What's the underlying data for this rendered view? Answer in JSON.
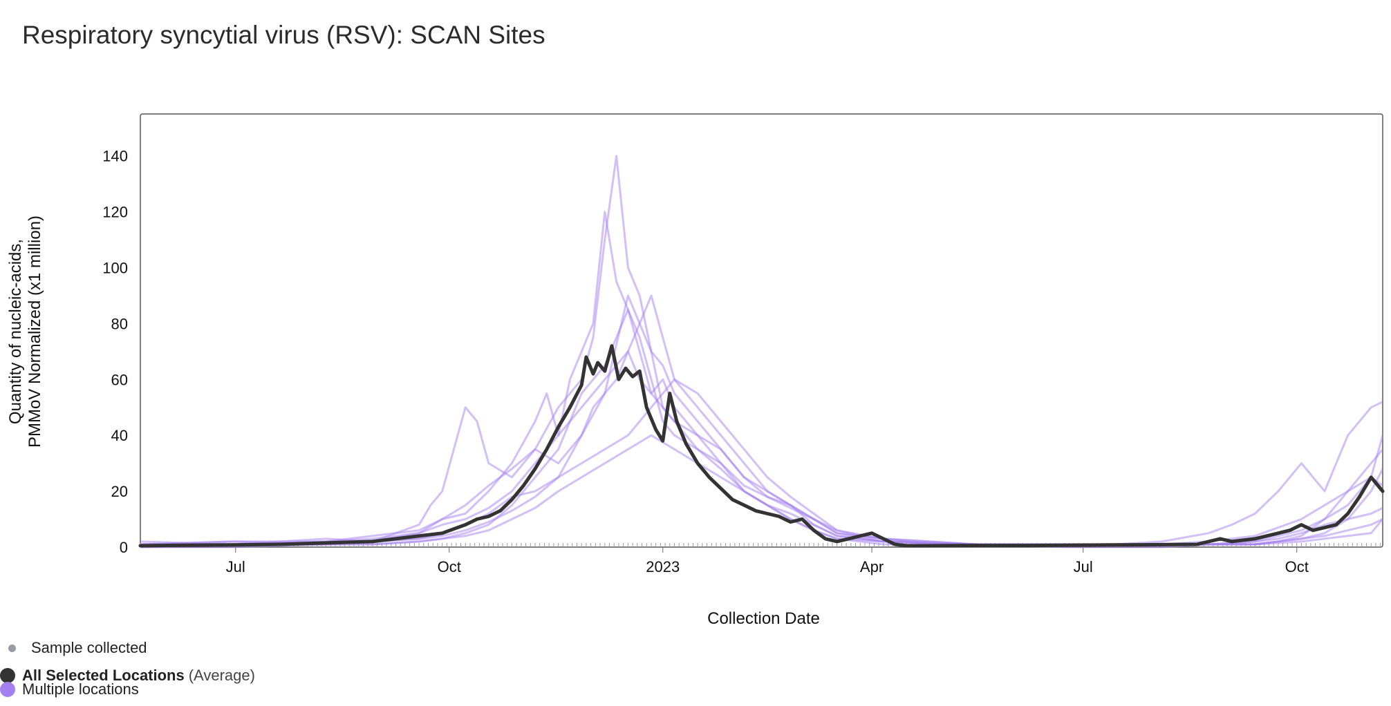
{
  "page": {
    "title": "Respiratory syncytial virus (RSV): SCAN Sites"
  },
  "legend": {
    "sample_label": "Sample collected",
    "average_label": "All Selected Locations",
    "average_suffix": "(Average)",
    "multiple_label": "Multiple locations"
  },
  "colors": {
    "average": "#333333",
    "locations": "#a57ff0",
    "sample_marker": "#9a9aa6",
    "frame": "#555555"
  },
  "chart_data": {
    "type": "line",
    "title": "Respiratory syncytial virus (RSV): SCAN Sites",
    "xlabel": "Collection Date",
    "ylabel": "Quantity of nucleic-acids, PMMoV Normalized (x1 million)",
    "ylabel_lines": [
      "Quantity of nucleic-acids,",
      "PMMoV Normalized (x1 million)"
    ],
    "ylim": [
      0,
      155
    ],
    "yticks": [
      0,
      20,
      40,
      60,
      80,
      100,
      120,
      140
    ],
    "xlim": [
      0,
      535
    ],
    "xticks": [
      {
        "day": 41,
        "label": "Jul"
      },
      {
        "day": 133,
        "label": "Oct"
      },
      {
        "day": 225,
        "label": "2023"
      },
      {
        "day": 315,
        "label": "Apr"
      },
      {
        "day": 406,
        "label": "Jul"
      },
      {
        "day": 498,
        "label": "Oct"
      }
    ],
    "x_units": "days since 2022-05-21",
    "series": [
      {
        "name": "All Selected Locations (Average)",
        "x": [
          0,
          20,
          40,
          60,
          80,
          100,
          110,
          120,
          130,
          135,
          140,
          145,
          150,
          155,
          160,
          165,
          170,
          175,
          180,
          185,
          190,
          192,
          195,
          197,
          200,
          203,
          206,
          209,
          212,
          215,
          218,
          222,
          225,
          228,
          231,
          235,
          240,
          245,
          250,
          255,
          260,
          265,
          270,
          275,
          280,
          285,
          290,
          295,
          300,
          305,
          310,
          315,
          320,
          325,
          330,
          340,
          360,
          380,
          400,
          420,
          440,
          455,
          465,
          470,
          480,
          490,
          495,
          500,
          505,
          510,
          515,
          520,
          525,
          530,
          533,
          535
        ],
        "values": [
          0.5,
          0.7,
          0.8,
          1.0,
          1.5,
          2.0,
          3.0,
          4.0,
          5.0,
          6.5,
          8.0,
          10,
          11,
          13,
          17,
          22,
          28,
          35,
          43,
          50,
          58,
          68,
          62,
          66,
          63,
          72,
          60,
          64,
          61,
          63,
          50,
          42,
          38,
          55,
          45,
          37,
          30,
          25,
          21,
          17,
          15,
          13,
          12,
          11,
          9,
          10,
          6,
          3,
          2,
          3,
          4,
          5,
          3,
          1,
          0.5,
          0.5,
          0.6,
          0.6,
          0.7,
          0.8,
          0.9,
          1.0,
          3.0,
          2.0,
          3.0,
          5.0,
          6.0,
          8.0,
          6.0,
          7.0,
          8.0,
          12.0,
          18.0,
          25.0,
          22.0,
          20.0
        ]
      }
    ],
    "location_series": [
      {
        "name": "Location 1",
        "x": [
          0,
          40,
          80,
          100,
          120,
          130,
          140,
          150,
          160,
          170,
          175,
          180,
          185,
          190,
          195,
          200,
          205,
          210,
          215,
          220,
          225,
          230,
          235,
          240,
          250,
          260,
          270,
          280,
          290,
          300,
          310,
          320,
          340,
          380,
          420,
          440,
          460,
          470,
          480,
          490,
          500,
          510,
          520,
          530,
          535
        ],
        "values": [
          2,
          1,
          3,
          2,
          5,
          10,
          12,
          20,
          30,
          45,
          55,
          40,
          60,
          70,
          80,
          120,
          95,
          85,
          70,
          55,
          60,
          50,
          45,
          40,
          30,
          22,
          18,
          14,
          10,
          6,
          4,
          3,
          1,
          1,
          1,
          2,
          5,
          8,
          12,
          20,
          30,
          20,
          40,
          50,
          52
        ]
      },
      {
        "name": "Location 2",
        "x": [
          0,
          40,
          80,
          100,
          120,
          125,
          130,
          135,
          140,
          145,
          150,
          160,
          170,
          180,
          190,
          195,
          200,
          205,
          210,
          215,
          220,
          225,
          230,
          240,
          250,
          260,
          270,
          280,
          290,
          300,
          320,
          360,
          400,
          440,
          460,
          480,
          500,
          510,
          520,
          530,
          535
        ],
        "values": [
          1,
          2,
          1,
          2,
          8,
          15,
          20,
          35,
          50,
          45,
          30,
          25,
          35,
          50,
          60,
          75,
          110,
          140,
          100,
          90,
          70,
          65,
          55,
          45,
          35,
          25,
          18,
          15,
          10,
          5,
          2,
          1,
          1,
          1,
          2,
          4,
          10,
          15,
          20,
          30,
          35
        ]
      },
      {
        "name": "Location 3",
        "x": [
          0,
          40,
          80,
          100,
          120,
          130,
          140,
          150,
          160,
          170,
          180,
          185,
          190,
          195,
          200,
          205,
          210,
          215,
          220,
          225,
          230,
          240,
          250,
          260,
          270,
          280,
          290,
          300,
          320,
          360,
          400,
          440,
          460,
          480,
          490,
          500,
          510,
          520,
          530,
          535
        ],
        "values": [
          1,
          1,
          2,
          3,
          5,
          8,
          10,
          14,
          20,
          30,
          40,
          45,
          50,
          55,
          60,
          65,
          70,
          60,
          55,
          50,
          45,
          35,
          28,
          20,
          15,
          12,
          8,
          4,
          2,
          1,
          1,
          1,
          1,
          2,
          3,
          5,
          8,
          10,
          12,
          14
        ]
      },
      {
        "name": "Location 4",
        "x": [
          0,
          40,
          80,
          100,
          120,
          130,
          140,
          150,
          160,
          170,
          180,
          190,
          195,
          200,
          205,
          210,
          215,
          220,
          225,
          230,
          235,
          240,
          250,
          260,
          270,
          280,
          290,
          300,
          320,
          360,
          400,
          440,
          460,
          480,
          490,
          500,
          510,
          520,
          530,
          535
        ],
        "values": [
          1,
          2,
          2,
          4,
          6,
          10,
          15,
          22,
          28,
          35,
          30,
          40,
          50,
          55,
          60,
          70,
          80,
          90,
          75,
          60,
          55,
          50,
          40,
          30,
          20,
          15,
          10,
          5,
          3,
          1,
          1,
          1,
          1,
          2,
          4,
          6,
          10,
          15,
          25,
          40
        ]
      },
      {
        "name": "Location 5",
        "x": [
          0,
          40,
          80,
          100,
          120,
          130,
          140,
          150,
          160,
          170,
          180,
          190,
          200,
          210,
          220,
          225,
          230,
          240,
          250,
          260,
          270,
          280,
          290,
          300,
          320,
          360,
          400,
          440,
          460,
          480,
          490,
          500,
          510,
          520,
          530,
          535
        ],
        "values": [
          1,
          1,
          1,
          2,
          3,
          4,
          6,
          9,
          13,
          18,
          25,
          40,
          55,
          90,
          70,
          50,
          45,
          40,
          35,
          25,
          20,
          15,
          8,
          4,
          2,
          1,
          1,
          1,
          1,
          1,
          2,
          3,
          4,
          6,
          8,
          10
        ]
      },
      {
        "name": "Location 6",
        "x": [
          0,
          40,
          80,
          100,
          120,
          130,
          140,
          150,
          160,
          170,
          180,
          190,
          200,
          210,
          215,
          220,
          230,
          240,
          250,
          260,
          270,
          280,
          290,
          300,
          320,
          360,
          400,
          440,
          460,
          480,
          490,
          500,
          510,
          520,
          530,
          535
        ],
        "values": [
          1,
          1,
          1,
          2,
          3,
          5,
          8,
          12,
          18,
          20,
          25,
          30,
          35,
          40,
          45,
          50,
          60,
          55,
          45,
          35,
          25,
          18,
          12,
          6,
          3,
          1,
          1,
          1,
          1,
          1,
          2,
          4,
          10,
          20,
          25,
          22
        ]
      },
      {
        "name": "Location 7",
        "x": [
          0,
          40,
          80,
          100,
          120,
          130,
          140,
          150,
          160,
          170,
          180,
          190,
          200,
          210,
          215,
          220,
          225,
          230,
          240,
          250,
          260,
          270,
          280,
          290,
          300,
          320,
          360,
          400,
          440,
          460,
          480,
          500,
          510,
          520,
          530,
          535
        ],
        "values": [
          0,
          1,
          1,
          1,
          2,
          3,
          5,
          8,
          15,
          25,
          35,
          55,
          65,
          85,
          75,
          60,
          45,
          40,
          35,
          30,
          20,
          15,
          10,
          6,
          3,
          2,
          1,
          1,
          1,
          1,
          1,
          3,
          5,
          10,
          20,
          28
        ]
      },
      {
        "name": "Location 8",
        "x": [
          0,
          40,
          80,
          100,
          120,
          130,
          140,
          150,
          160,
          170,
          180,
          190,
          200,
          210,
          220,
          230,
          240,
          250,
          260,
          270,
          280,
          290,
          300,
          320,
          360,
          400,
          440,
          460,
          480,
          500,
          510,
          520,
          530,
          535
        ],
        "values": [
          0,
          0,
          1,
          1,
          2,
          3,
          4,
          6,
          10,
          14,
          20,
          25,
          30,
          35,
          40,
          35,
          30,
          25,
          20,
          15,
          10,
          6,
          3,
          1,
          1,
          0,
          0,
          1,
          1,
          2,
          3,
          4,
          5,
          10
        ]
      }
    ],
    "sample_marker": "small tick along the x-axis for each collected sample"
  }
}
